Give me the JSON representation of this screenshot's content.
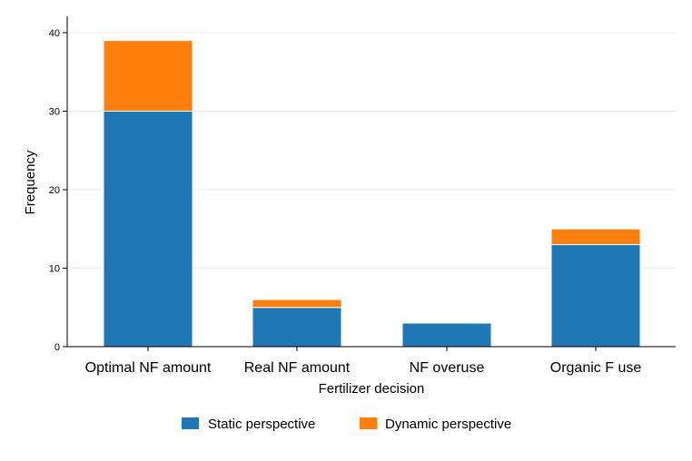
{
  "chart_data": {
    "type": "bar",
    "stacked": true,
    "categories": [
      "Optimal NF amount",
      "Real NF amount",
      "NF overuse",
      "Organic F use"
    ],
    "series": [
      {
        "name": "Static perspective",
        "values": [
          30,
          5,
          3,
          13
        ],
        "color": "#1f77b4"
      },
      {
        "name": "Dynamic perspective",
        "values": [
          9,
          1,
          0,
          2
        ],
        "color": "#ff7f0e"
      }
    ],
    "xlabel": "Fertilizer decision",
    "ylabel": "Frequency",
    "ylim": [
      0,
      42
    ],
    "yticks": [
      0,
      10,
      20,
      30,
      40
    ],
    "grid": true,
    "legend_position": "bottom"
  }
}
